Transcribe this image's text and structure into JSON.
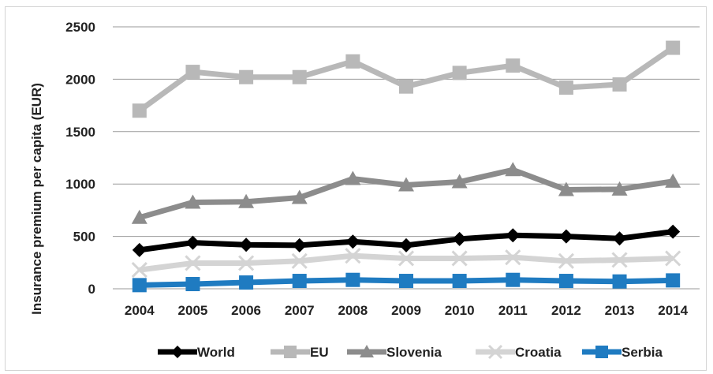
{
  "chart_data": {
    "type": "line",
    "title": "",
    "xlabel": "",
    "ylabel": "Insurance premium per capita (EUR)",
    "ylim": [
      0,
      2500
    ],
    "yticks": [
      "0",
      "500",
      "1000",
      "1500",
      "2000",
      "2500"
    ],
    "categories": [
      "2004",
      "2005",
      "2006",
      "2007",
      "2008",
      "2009",
      "2010",
      "2011",
      "2012",
      "2013",
      "2014"
    ],
    "grid": "horizontal",
    "legend_position": "bottom",
    "series": [
      {
        "name": "World",
        "color": "#000000",
        "marker": "diamond",
        "values": [
          370,
          440,
          420,
          415,
          450,
          415,
          475,
          510,
          500,
          480,
          545
        ]
      },
      {
        "name": "EU",
        "color": "#b8b8b8",
        "marker": "square",
        "values": [
          1700,
          2070,
          2020,
          2020,
          2170,
          1930,
          2060,
          2130,
          1920,
          1950,
          2300
        ]
      },
      {
        "name": "Slovenia",
        "color": "#8c8c8c",
        "marker": "triangle",
        "values": [
          680,
          825,
          830,
          870,
          1050,
          990,
          1020,
          1135,
          945,
          950,
          1025
        ]
      },
      {
        "name": "Croatia",
        "color": "#d4d4d4",
        "marker": "x",
        "values": [
          180,
          245,
          245,
          265,
          315,
          290,
          290,
          300,
          265,
          275,
          290
        ]
      },
      {
        "name": "Serbia",
        "color": "#1f7bc1",
        "marker": "square",
        "values": [
          35,
          45,
          60,
          75,
          85,
          75,
          75,
          85,
          75,
          70,
          80
        ]
      }
    ]
  }
}
